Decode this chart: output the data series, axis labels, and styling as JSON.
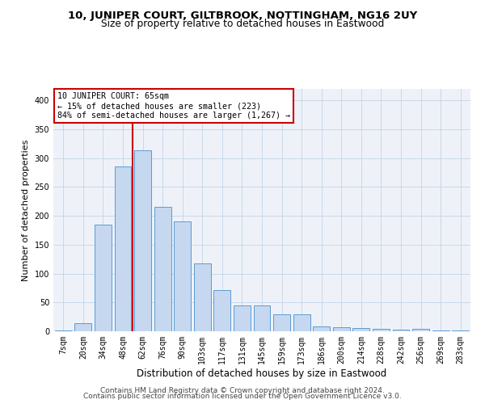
{
  "title1": "10, JUNIPER COURT, GILTBROOK, NOTTINGHAM, NG16 2UY",
  "title2": "Size of property relative to detached houses in Eastwood",
  "xlabel": "Distribution of detached houses by size in Eastwood",
  "ylabel": "Number of detached properties",
  "categories": [
    "7sqm",
    "20sqm",
    "34sqm",
    "48sqm",
    "62sqm",
    "76sqm",
    "90sqm",
    "103sqm",
    "117sqm",
    "131sqm",
    "145sqm",
    "159sqm",
    "173sqm",
    "186sqm",
    "200sqm",
    "214sqm",
    "228sqm",
    "242sqm",
    "256sqm",
    "269sqm",
    "283sqm"
  ],
  "values": [
    2,
    14,
    185,
    285,
    313,
    215,
    190,
    118,
    72,
    45,
    45,
    30,
    30,
    9,
    7,
    5,
    4,
    3,
    4,
    2,
    2
  ],
  "bar_color": "#c5d8f0",
  "bar_edge_color": "#5b9bd5",
  "vline_x": 3.5,
  "annotation_title": "10 JUNIPER COURT: 65sqm",
  "annotation_line1": "← 15% of detached houses are smaller (223)",
  "annotation_line2": "84% of semi-detached houses are larger (1,267) →",
  "annotation_box_color": "#ffffff",
  "annotation_box_edge": "#cc0000",
  "vline_color": "#cc0000",
  "grid_color": "#c8d8e8",
  "background_color": "#eef2f8",
  "footer1": "Contains HM Land Registry data © Crown copyright and database right 2024.",
  "footer2": "Contains public sector information licensed under the Open Government Licence v3.0.",
  "ylim": [
    0,
    420
  ],
  "title1_fontsize": 9.5,
  "title2_fontsize": 8.8,
  "xlabel_fontsize": 8.5,
  "ylabel_fontsize": 8,
  "tick_fontsize": 7,
  "annotation_fontsize": 7.2,
  "footer_fontsize": 6.5
}
